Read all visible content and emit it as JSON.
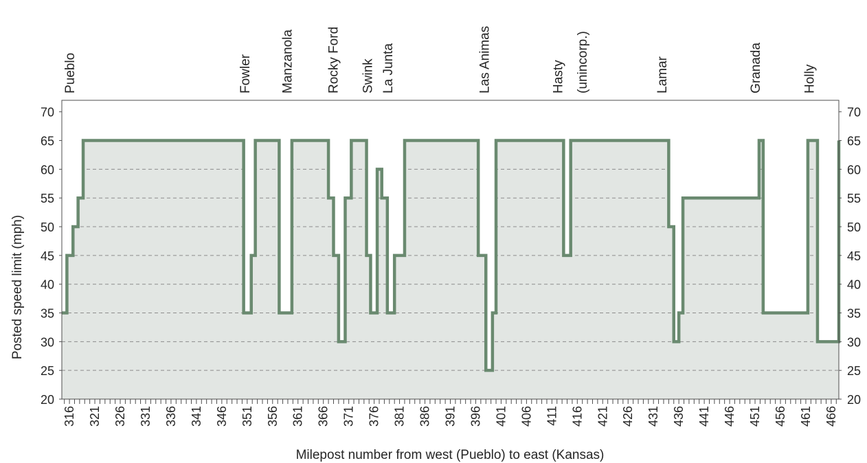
{
  "chart_data": {
    "type": "line",
    "subtype": "step",
    "xlabel": "Milepost number from west (Pueblo) to east (Kansas)",
    "ylabel": "Posted speed limit (mph)",
    "xlim": [
      314.5,
      467.5
    ],
    "ylim": [
      20,
      72
    ],
    "x_ticks": [
      316,
      321,
      326,
      331,
      336,
      341,
      346,
      351,
      356,
      361,
      366,
      371,
      376,
      381,
      386,
      391,
      396,
      401,
      406,
      411,
      416,
      421,
      426,
      431,
      436,
      441,
      446,
      451,
      456,
      461,
      466
    ],
    "y_ticks": [
      20,
      25,
      30,
      35,
      40,
      45,
      50,
      55,
      60,
      65,
      70
    ],
    "grid": "horizontal dashed",
    "colors": {
      "line": "#6a8a70",
      "fill": "#e2e6e3",
      "grid": "#8c8c8c"
    },
    "series": [
      {
        "x": [
          314.5,
          315.5,
          316.7,
          317.7,
          318.7,
          320.0,
          350.3,
          351.8,
          352.6,
          356.7,
          357.3,
          358.2,
          359.8,
          366.0,
          367.0,
          368.0,
          369.0,
          370.3,
          371.5,
          374.5,
          375.3,
          376.6,
          377.5,
          378.6,
          380.0,
          382.0,
          395.6,
          396.5,
          398.0,
          399.3,
          400.0,
          413.3,
          414.7,
          432.0,
          434.0,
          435.0,
          436.0,
          436.8,
          451.8,
          452.6,
          461.4,
          463.3,
          467.5
        ],
        "y": [
          35,
          45,
          50,
          55,
          65,
          65,
          35,
          45,
          65,
          65,
          35,
          35,
          65,
          65,
          55,
          45,
          30,
          55,
          65,
          45,
          35,
          60,
          55,
          35,
          45,
          65,
          65,
          45,
          25,
          35,
          65,
          45,
          65,
          65,
          50,
          30,
          35,
          55,
          65,
          35,
          65,
          30,
          65
        ]
      }
    ],
    "towns": [
      {
        "name": "Pueblo",
        "x": 316.0
      },
      {
        "name": "Fowler",
        "x": 350.5
      },
      {
        "name": "Manzanola",
        "x": 358.8
      },
      {
        "name": "Rocky Ford",
        "x": 367.9
      },
      {
        "name": "Swink",
        "x": 374.6
      },
      {
        "name": "La Junta",
        "x": 378.6
      },
      {
        "name": "Las Animas",
        "x": 397.6
      },
      {
        "name": "Hasty",
        "sub": "(unincorp.)",
        "x": 412.1,
        "x_sub": 416.9
      },
      {
        "name": "Lamar",
        "x": 432.6
      },
      {
        "name": "Granada",
        "x": 451.0
      },
      {
        "name": "Holly",
        "x": 461.6
      }
    ]
  }
}
